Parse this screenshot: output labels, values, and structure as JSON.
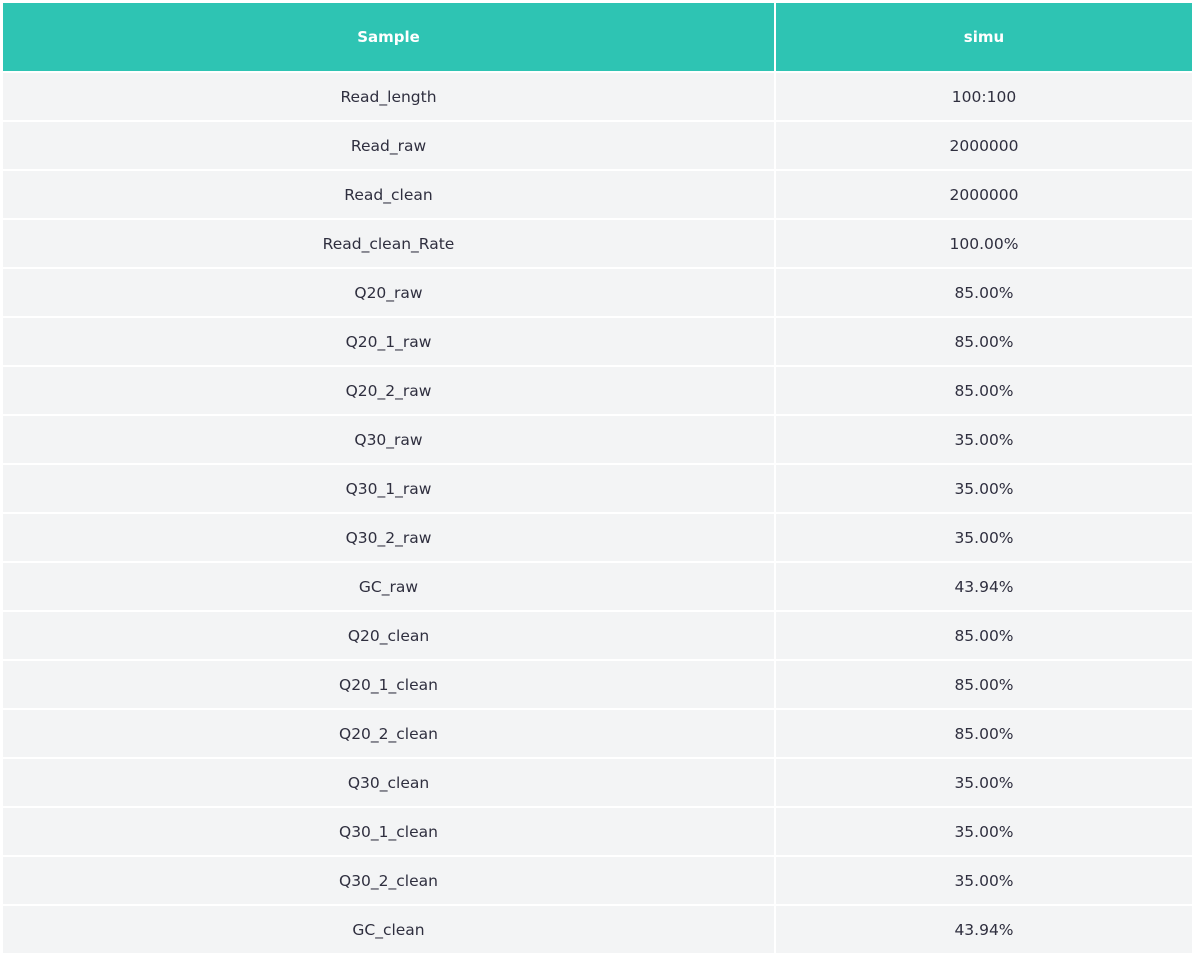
{
  "table": {
    "headers": [
      "Sample",
      "simu"
    ],
    "rows": [
      [
        "Read_length",
        "100:100"
      ],
      [
        "Read_raw",
        "2000000"
      ],
      [
        "Read_clean",
        "2000000"
      ],
      [
        "Read_clean_Rate",
        "100.00%"
      ],
      [
        "Q20_raw",
        "85.00%"
      ],
      [
        "Q20_1_raw",
        "85.00%"
      ],
      [
        "Q20_2_raw",
        "85.00%"
      ],
      [
        "Q30_raw",
        "35.00%"
      ],
      [
        "Q30_1_raw",
        "35.00%"
      ],
      [
        "Q30_2_raw",
        "35.00%"
      ],
      [
        "GC_raw",
        "43.94%"
      ],
      [
        "Q20_clean",
        "85.00%"
      ],
      [
        "Q20_1_clean",
        "85.00%"
      ],
      [
        "Q20_2_clean",
        "85.00%"
      ],
      [
        "Q30_clean",
        "35.00%"
      ],
      [
        "Q30_1_clean",
        "35.00%"
      ],
      [
        "Q30_2_clean",
        "35.00%"
      ],
      [
        "GC_clean",
        "43.94%"
      ]
    ]
  },
  "colors": {
    "header_bg": "#2ec4b3",
    "header_text": "#ffffff",
    "row_bg": "#f3f4f5"
  }
}
